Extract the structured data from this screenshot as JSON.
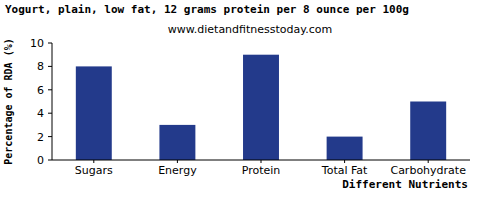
{
  "chart_data": {
    "type": "bar",
    "title": "Yogurt, plain, low fat, 12 grams protein per 8 ounce per 100g",
    "subtitle": "www.dietandfitnesstoday.com",
    "x_label": "Different Nutrients",
    "y_label": "Percentage of RDA (%)",
    "categories": [
      "Sugars",
      "Energy",
      "Protein",
      "Total Fat",
      "Carbohydrate"
    ],
    "values": [
      8,
      3,
      9,
      2,
      5
    ],
    "color": "#233a8b",
    "ylim": [
      0,
      10
    ],
    "yticks": [
      0,
      2,
      4,
      6,
      8,
      10
    ],
    "grid": false
  }
}
